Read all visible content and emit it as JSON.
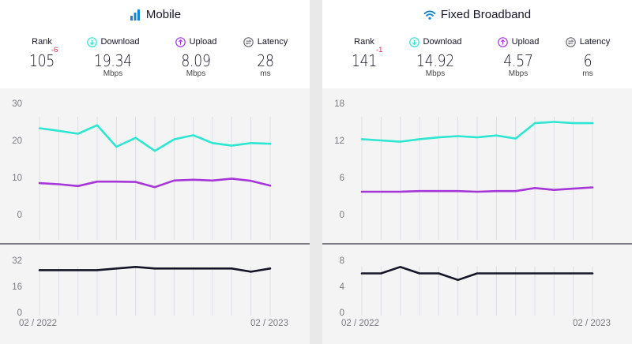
{
  "colors": {
    "download": "#2ee6d2",
    "upload": "#a636d8",
    "latency": "#141526",
    "rank_change": "#e0224f",
    "grid": "#dfdfe3",
    "divider": "#33343f"
  },
  "panels": [
    {
      "title": "Mobile",
      "title_icon": "cellular-bars-icon",
      "stats": [
        {
          "label": "Rank",
          "value": "105",
          "change": "-6",
          "unit": ""
        },
        {
          "label": "Download",
          "icon": "download-icon",
          "value": "19.34",
          "unit": "Mbps"
        },
        {
          "label": "Upload",
          "icon": "upload-icon",
          "value": "8.09",
          "unit": "Mbps"
        },
        {
          "label": "Latency",
          "icon": "latency-icon",
          "value": "28",
          "unit": "ms"
        }
      ],
      "x_start_label": "02 / 2022",
      "x_end_label": "02 / 2023"
    },
    {
      "title": "Fixed Broadband",
      "title_icon": "wifi-icon",
      "stats": [
        {
          "label": "Rank",
          "value": "141",
          "change": "-1",
          "unit": ""
        },
        {
          "label": "Download",
          "icon": "download-icon",
          "value": "14.92",
          "unit": "Mbps"
        },
        {
          "label": "Upload",
          "icon": "upload-icon",
          "value": "4.57",
          "unit": "Mbps"
        },
        {
          "label": "Latency",
          "icon": "latency-icon",
          "value": "6",
          "unit": "ms"
        }
      ],
      "x_start_label": "02 / 2022",
      "x_end_label": "02 / 2023"
    }
  ],
  "chart_data": [
    {
      "type": "line",
      "x": [
        "02 / 2022",
        "03 / 2022",
        "04 / 2022",
        "05 / 2022",
        "06 / 2022",
        "07 / 2022",
        "08 / 2022",
        "09 / 2022",
        "10 / 2022",
        "11 / 2022",
        "12 / 2022",
        "01 / 2023",
        "02 / 2023"
      ],
      "speed_yticks": [
        0,
        10,
        20,
        30
      ],
      "speed_ylim": [
        0,
        30
      ],
      "series": [
        {
          "name": "Download",
          "values": [
            23.3,
            22.6,
            21.8,
            24.1,
            18.3,
            20.7,
            17.2,
            20.3,
            21.4,
            19.3,
            18.6,
            19.3,
            19.1
          ]
        },
        {
          "name": "Upload",
          "values": [
            8.5,
            8.2,
            7.7,
            8.9,
            8.9,
            8.8,
            7.4,
            9.2,
            9.4,
            9.2,
            9.7,
            9.1,
            7.8
          ]
        }
      ],
      "latency_yticks": [
        0,
        16,
        32
      ],
      "latency_ylim": [
        0,
        32
      ],
      "latency": {
        "name": "Latency",
        "values": [
          26,
          26,
          26,
          26,
          27,
          28,
          27,
          27,
          27,
          27,
          27,
          25,
          27
        ]
      },
      "grid": true
    },
    {
      "type": "line",
      "x": [
        "02 / 2022",
        "03 / 2022",
        "04 / 2022",
        "05 / 2022",
        "06 / 2022",
        "07 / 2022",
        "08 / 2022",
        "09 / 2022",
        "10 / 2022",
        "11 / 2022",
        "12 / 2022",
        "01 / 2023",
        "02 / 2023"
      ],
      "speed_yticks": [
        0,
        6,
        12,
        18
      ],
      "speed_ylim": [
        0,
        18
      ],
      "series": [
        {
          "name": "Download",
          "values": [
            12.2,
            12.0,
            11.8,
            12.2,
            12.5,
            12.7,
            12.5,
            12.8,
            12.3,
            14.8,
            15.0,
            14.8,
            14.8
          ]
        },
        {
          "name": "Upload",
          "values": [
            3.7,
            3.7,
            3.7,
            3.8,
            3.8,
            3.8,
            3.7,
            3.8,
            3.8,
            4.3,
            4.0,
            4.2,
            4.4
          ]
        }
      ],
      "latency_yticks": [
        0,
        4,
        8
      ],
      "latency_ylim": [
        0,
        8
      ],
      "latency": {
        "name": "Latency",
        "values": [
          6,
          6,
          7,
          6,
          6,
          5,
          6,
          6,
          6,
          6,
          6,
          6,
          6
        ]
      },
      "grid": true
    }
  ]
}
